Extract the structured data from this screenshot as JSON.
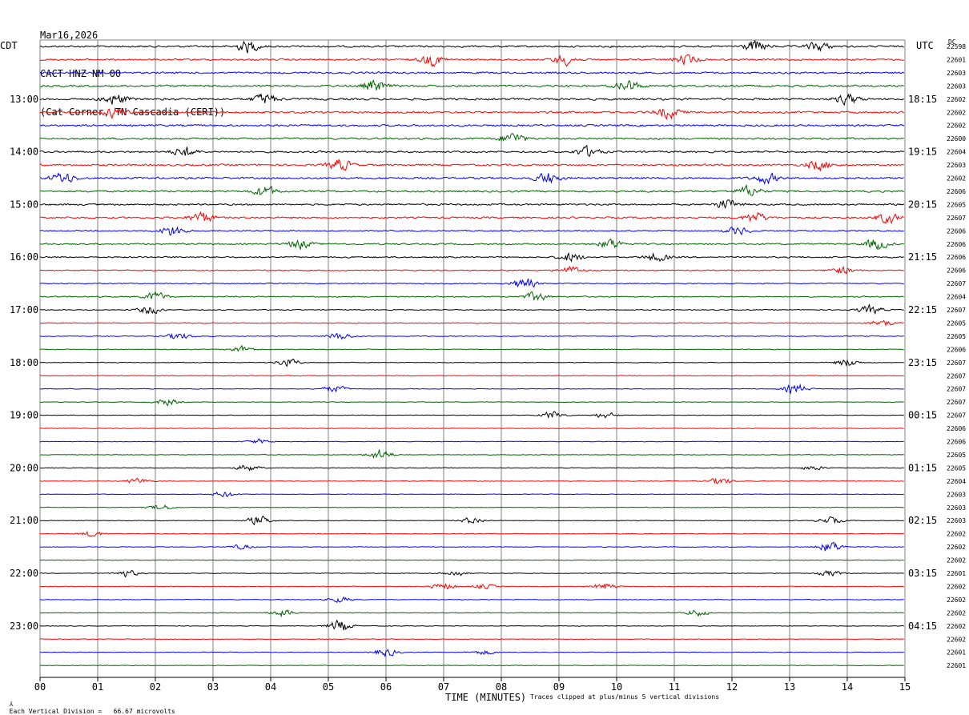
{
  "header": {
    "date": "Mar16,2026",
    "channel": "CACT HNZ NM 00",
    "location": "(Cat Corner, TN Cascadia (CERI))"
  },
  "left_zone_label": "CDT",
  "right_zone_label": "UTC",
  "dc_label": "DC",
  "footer": {
    "scale_note": "Each Vertical Division =   66.67 microvolts",
    "clip_note": "Traces clipped at plus/minus 5 vertical divisions",
    "corner_mark": "⅄"
  },
  "colors": {
    "trace_cycle": [
      "#000000",
      "#ff0000",
      "#0000ff",
      "#006400"
    ],
    "grid": "#808080",
    "background": "#ffffff"
  },
  "chart_data": {
    "type": "line",
    "title": "",
    "xlabel": "TIME (MINUTES)",
    "ylabel": "",
    "x_ticks": [
      "00",
      "01",
      "02",
      "03",
      "04",
      "05",
      "06",
      "07",
      "08",
      "09",
      "10",
      "11",
      "12",
      "13",
      "14",
      "15"
    ],
    "xlim": [
      0,
      15
    ],
    "grid": true,
    "rows_per_hour": 4,
    "trace_count": 48,
    "left_time_labels": [
      "13:00",
      "14:00",
      "15:00",
      "16:00",
      "17:00",
      "18:00",
      "19:00",
      "20:00",
      "21:00",
      "22:00",
      "23:00"
    ],
    "left_time_label_rows": [
      4,
      8,
      12,
      16,
      20,
      24,
      28,
      32,
      36,
      40,
      44
    ],
    "right_time_labels": [
      "18:15",
      "19:15",
      "20:15",
      "21:15",
      "22:15",
      "23:15",
      "00:15",
      "01:15",
      "02:15",
      "03:15",
      "04:15"
    ],
    "right_time_label_rows": [
      4,
      8,
      12,
      16,
      20,
      24,
      28,
      32,
      36,
      40,
      44
    ],
    "dc_offsets": [
      "22598",
      "22601",
      "22603",
      "22603",
      "22602",
      "22602",
      "22602",
      "22600",
      "22604",
      "22603",
      "22602",
      "22606",
      "22605",
      "22607",
      "22606",
      "22606",
      "22606",
      "22606",
      "22607",
      "22604",
      "22607",
      "22605",
      "22605",
      "22606",
      "22607",
      "22607",
      "22607",
      "22607",
      "22607",
      "22606",
      "22606",
      "22605",
      "22605",
      "22604",
      "22603",
      "22603",
      "22603",
      "22602",
      "22602",
      "22602",
      "22601",
      "22602",
      "22602",
      "22602",
      "22602",
      "22602",
      "22601",
      "22601"
    ],
    "row_noise_level": [
      0.9,
      0.85,
      0.9,
      0.95,
      1.0,
      0.95,
      0.95,
      0.9,
      0.9,
      0.9,
      0.95,
      0.9,
      0.85,
      0.8,
      0.6,
      0.75,
      0.7,
      0.5,
      0.5,
      0.55,
      0.45,
      0.4,
      0.4,
      0.35,
      0.3,
      0.3,
      0.3,
      0.3,
      0.3,
      0.3,
      0.3,
      0.3,
      0.3,
      0.3,
      0.3,
      0.3,
      0.3,
      0.3,
      0.3,
      0.3,
      0.3,
      0.3,
      0.3,
      0.3,
      0.3,
      0.3,
      0.3,
      0.3
    ],
    "events": [
      {
        "row": 0,
        "minute": 3.6,
        "amplitude": 1.0
      },
      {
        "row": 0,
        "minute": 12.4,
        "amplitude": 1.0
      },
      {
        "row": 0,
        "minute": 13.5,
        "amplitude": 0.8
      },
      {
        "row": 1,
        "minute": 6.8,
        "amplitude": 1.0
      },
      {
        "row": 1,
        "minute": 9.1,
        "amplitude": 0.9
      },
      {
        "row": 1,
        "minute": 11.2,
        "amplitude": 0.8
      },
      {
        "row": 3,
        "minute": 5.8,
        "amplitude": 1.0
      },
      {
        "row": 3,
        "minute": 10.2,
        "amplitude": 1.0
      },
      {
        "row": 4,
        "minute": 1.3,
        "amplitude": 1.0
      },
      {
        "row": 4,
        "minute": 3.9,
        "amplitude": 1.0
      },
      {
        "row": 4,
        "minute": 14.0,
        "amplitude": 0.9
      },
      {
        "row": 5,
        "minute": 1.3,
        "amplitude": 0.9
      },
      {
        "row": 5,
        "minute": 10.9,
        "amplitude": 1.0
      },
      {
        "row": 7,
        "minute": 8.2,
        "amplitude": 1.0
      },
      {
        "row": 8,
        "minute": 2.5,
        "amplitude": 0.9
      },
      {
        "row": 8,
        "minute": 9.5,
        "amplitude": 0.9
      },
      {
        "row": 9,
        "minute": 5.2,
        "amplitude": 1.0
      },
      {
        "row": 9,
        "minute": 13.5,
        "amplitude": 1.0
      },
      {
        "row": 10,
        "minute": 0.4,
        "amplitude": 1.0
      },
      {
        "row": 10,
        "minute": 8.8,
        "amplitude": 1.0
      },
      {
        "row": 10,
        "minute": 12.6,
        "amplitude": 0.9
      },
      {
        "row": 11,
        "minute": 3.9,
        "amplitude": 0.9
      },
      {
        "row": 11,
        "minute": 12.3,
        "amplitude": 0.9
      },
      {
        "row": 12,
        "minute": 11.9,
        "amplitude": 0.9
      },
      {
        "row": 13,
        "minute": 2.8,
        "amplitude": 1.0
      },
      {
        "row": 13,
        "minute": 12.4,
        "amplitude": 0.9
      },
      {
        "row": 13,
        "minute": 14.7,
        "amplitude": 0.9
      },
      {
        "row": 14,
        "minute": 2.3,
        "amplitude": 1.0
      },
      {
        "row": 14,
        "minute": 12.1,
        "amplitude": 0.7
      },
      {
        "row": 15,
        "minute": 4.5,
        "amplitude": 0.8
      },
      {
        "row": 15,
        "minute": 9.9,
        "amplitude": 0.9
      },
      {
        "row": 15,
        "minute": 14.5,
        "amplitude": 1.0
      },
      {
        "row": 16,
        "minute": 9.2,
        "amplitude": 0.8
      },
      {
        "row": 16,
        "minute": 10.7,
        "amplitude": 0.8
      },
      {
        "row": 17,
        "minute": 9.2,
        "amplitude": 0.7
      },
      {
        "row": 17,
        "minute": 13.9,
        "amplitude": 0.7
      },
      {
        "row": 18,
        "minute": 8.4,
        "amplitude": 1.0
      },
      {
        "row": 19,
        "minute": 2.0,
        "amplitude": 0.8
      },
      {
        "row": 19,
        "minute": 8.6,
        "amplitude": 0.8
      },
      {
        "row": 20,
        "minute": 1.9,
        "amplitude": 0.7
      },
      {
        "row": 20,
        "minute": 14.4,
        "amplitude": 0.8
      },
      {
        "row": 21,
        "minute": 14.6,
        "amplitude": 0.6
      },
      {
        "row": 22,
        "minute": 2.4,
        "amplitude": 0.6
      },
      {
        "row": 22,
        "minute": 5.2,
        "amplitude": 0.6
      },
      {
        "row": 23,
        "minute": 3.5,
        "amplitude": 0.6
      },
      {
        "row": 24,
        "minute": 4.3,
        "amplitude": 0.7
      },
      {
        "row": 24,
        "minute": 14.0,
        "amplitude": 0.7
      },
      {
        "row": 26,
        "minute": 5.1,
        "amplitude": 0.6
      },
      {
        "row": 26,
        "minute": 13.1,
        "amplitude": 0.9
      },
      {
        "row": 27,
        "minute": 2.2,
        "amplitude": 0.6
      },
      {
        "row": 28,
        "minute": 8.9,
        "amplitude": 0.7
      },
      {
        "row": 28,
        "minute": 9.8,
        "amplitude": 0.5
      },
      {
        "row": 30,
        "minute": 3.8,
        "amplitude": 0.4
      },
      {
        "row": 31,
        "minute": 5.9,
        "amplitude": 1.0
      },
      {
        "row": 32,
        "minute": 3.6,
        "amplitude": 0.6
      },
      {
        "row": 32,
        "minute": 13.4,
        "amplitude": 0.4
      },
      {
        "row": 33,
        "minute": 1.7,
        "amplitude": 0.5
      },
      {
        "row": 33,
        "minute": 11.8,
        "amplitude": 0.6
      },
      {
        "row": 34,
        "minute": 3.2,
        "amplitude": 0.5
      },
      {
        "row": 35,
        "minute": 2.1,
        "amplitude": 0.5
      },
      {
        "row": 36,
        "minute": 3.8,
        "amplitude": 0.8
      },
      {
        "row": 36,
        "minute": 7.5,
        "amplitude": 0.6
      },
      {
        "row": 36,
        "minute": 13.7,
        "amplitude": 0.6
      },
      {
        "row": 37,
        "minute": 0.9,
        "amplitude": 0.5
      },
      {
        "row": 38,
        "minute": 13.7,
        "amplitude": 1.0
      },
      {
        "row": 38,
        "minute": 3.5,
        "amplitude": 0.4
      },
      {
        "row": 40,
        "minute": 1.5,
        "amplitude": 0.6
      },
      {
        "row": 40,
        "minute": 13.7,
        "amplitude": 0.5
      },
      {
        "row": 40,
        "minute": 7.2,
        "amplitude": 0.5
      },
      {
        "row": 41,
        "minute": 7.0,
        "amplitude": 0.6
      },
      {
        "row": 41,
        "minute": 9.8,
        "amplitude": 0.6
      },
      {
        "row": 41,
        "minute": 7.7,
        "amplitude": 0.4
      },
      {
        "row": 42,
        "minute": 5.2,
        "amplitude": 0.5
      },
      {
        "row": 43,
        "minute": 4.2,
        "amplitude": 0.6
      },
      {
        "row": 43,
        "minute": 11.4,
        "amplitude": 0.6
      },
      {
        "row": 44,
        "minute": 5.2,
        "amplitude": 1.0
      },
      {
        "row": 46,
        "minute": 6.0,
        "amplitude": 0.7
      },
      {
        "row": 46,
        "minute": 7.7,
        "amplitude": 0.4
      }
    ]
  }
}
